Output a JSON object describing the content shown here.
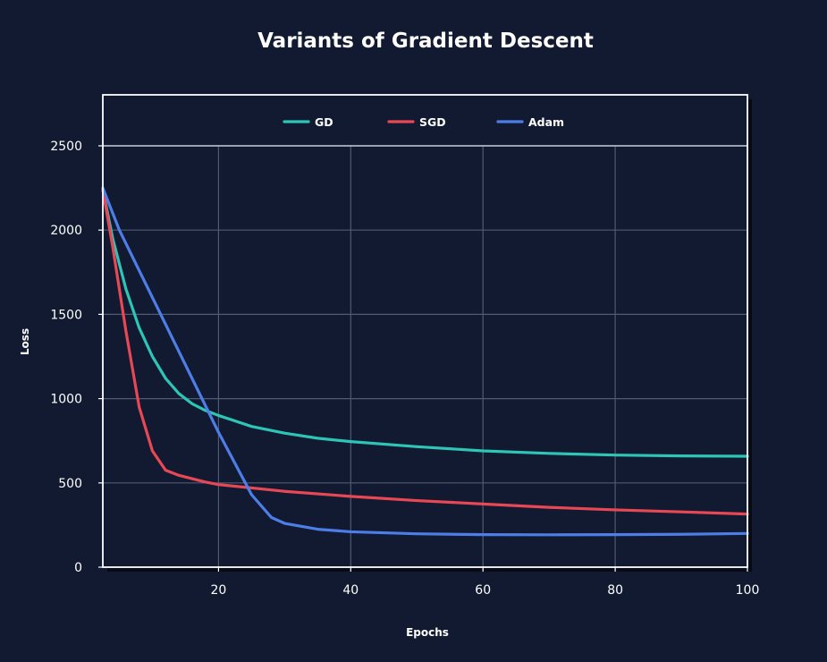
{
  "chart_data": {
    "type": "line",
    "title": "Variants of Gradient Descent",
    "xlabel": "Epochs",
    "ylabel": "Loss",
    "xlim": [
      2.5,
      100
    ],
    "ylim": [
      0,
      2650
    ],
    "xticks": [
      20,
      40,
      60,
      80,
      100
    ],
    "yticks": [
      0,
      500,
      1000,
      1500,
      2000,
      2500
    ],
    "grid": true,
    "legend_position": "top",
    "series": [
      {
        "name": "GD",
        "color": "#2ec4b6",
        "points": [
          [
            2.5,
            2240
          ],
          [
            4,
            1950
          ],
          [
            6,
            1650
          ],
          [
            8,
            1420
          ],
          [
            10,
            1250
          ],
          [
            12,
            1120
          ],
          [
            14,
            1030
          ],
          [
            16,
            970
          ],
          [
            18,
            930
          ],
          [
            20,
            900
          ],
          [
            25,
            835
          ],
          [
            30,
            795
          ],
          [
            35,
            765
          ],
          [
            40,
            745
          ],
          [
            50,
            715
          ],
          [
            60,
            690
          ],
          [
            70,
            675
          ],
          [
            80,
            665
          ],
          [
            90,
            660
          ],
          [
            100,
            658
          ]
        ]
      },
      {
        "name": "SGD",
        "color": "#e84855",
        "points": [
          [
            2.5,
            2240
          ],
          [
            4,
            1900
          ],
          [
            6,
            1400
          ],
          [
            8,
            950
          ],
          [
            10,
            690
          ],
          [
            12,
            575
          ],
          [
            14,
            545
          ],
          [
            16,
            525
          ],
          [
            18,
            505
          ],
          [
            20,
            490
          ],
          [
            30,
            450
          ],
          [
            40,
            420
          ],
          [
            50,
            395
          ],
          [
            60,
            375
          ],
          [
            70,
            355
          ],
          [
            80,
            340
          ],
          [
            90,
            328
          ],
          [
            100,
            315
          ]
        ]
      },
      {
        "name": "Adam",
        "color": "#4d7ee8",
        "points": [
          [
            2.5,
            2250
          ],
          [
            5,
            2000
          ],
          [
            10,
            1600
          ],
          [
            15,
            1200
          ],
          [
            20,
            800
          ],
          [
            25,
            430
          ],
          [
            28,
            295
          ],
          [
            30,
            260
          ],
          [
            35,
            225
          ],
          [
            40,
            210
          ],
          [
            50,
            198
          ],
          [
            60,
            193
          ],
          [
            70,
            192
          ],
          [
            80,
            193
          ],
          [
            90,
            195
          ],
          [
            100,
            200
          ]
        ]
      }
    ]
  }
}
